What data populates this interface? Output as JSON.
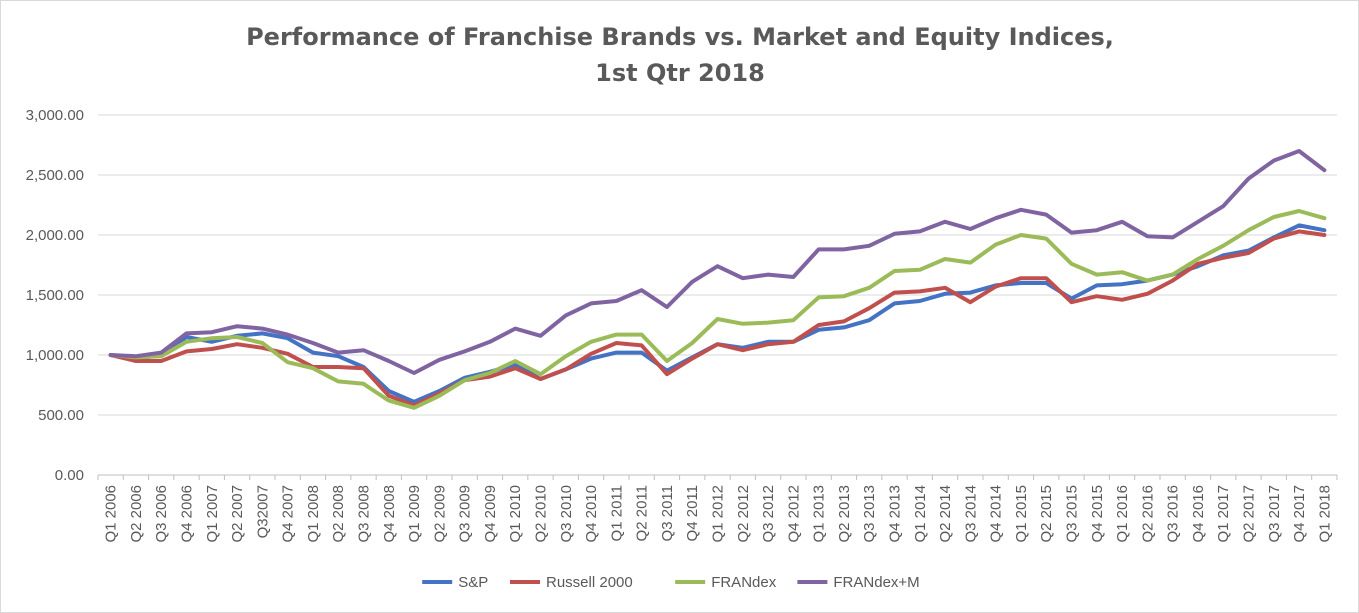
{
  "chart_data": {
    "type": "line",
    "title_lines": [
      "Performance of Franchise Brands vs. Market and Equity Indices,",
      "1st Qtr 2018"
    ],
    "xlabel": "",
    "ylabel": "",
    "ylim": [
      0,
      3000
    ],
    "y_ticks": [
      "0.00",
      "500.00",
      "1,000.00",
      "1,500.00",
      "2,000.00",
      "2,500.00",
      "3,000.00"
    ],
    "grid": "horizontal",
    "legend_position": "bottom",
    "categories": [
      "Q1 2006",
      "Q2 2006",
      "Q3 2006",
      "Q4 2006",
      "Q1 2007",
      "Q2 2007",
      "Q32007",
      "Q4 2007",
      "Q1 2008",
      "Q2 2008",
      "Q3 2008",
      "Q4 2008",
      "Q1 2009",
      "Q2 2009",
      "Q3 2009",
      "Q4 2009",
      "Q1 2010",
      "Q2 2010",
      "Q3 2010",
      "Q4 2010",
      "Q1 2011",
      "Q2 2011",
      "Q3 2011",
      "Q4 2011",
      "Q1 2012",
      "Q2 2012",
      "Q3 2012",
      "Q4 2012",
      "Q1 2013",
      "Q2 2013",
      "Q3 2013",
      "Q4 2013",
      "Q1 2014",
      "Q2 2014",
      "Q3 2014",
      "Q4 2014",
      "Q1 2015",
      "Q2 2015",
      "Q3 2015",
      "Q4 2015",
      "Q1 2016",
      "Q2 2016",
      "Q3 2016",
      "Q4 2016",
      "Q1 2017",
      "Q2 2017",
      "Q3 2017",
      "Q4 2017",
      "Q1 2018"
    ],
    "series": [
      {
        "name": "S&P",
        "color": "#4472C4",
        "values": [
          1000,
          970,
          1000,
          1150,
          1110,
          1160,
          1180,
          1140,
          1020,
          990,
          900,
          700,
          610,
          700,
          810,
          860,
          920,
          800,
          880,
          970,
          1020,
          1020,
          870,
          980,
          1090,
          1060,
          1110,
          1110,
          1210,
          1230,
          1290,
          1430,
          1450,
          1510,
          1520,
          1580,
          1600,
          1600,
          1470,
          1580,
          1590,
          1620,
          1670,
          1740,
          1830,
          1870,
          1980,
          2080,
          2040
        ]
      },
      {
        "name": "Russell 2000",
        "color": "#C0504D",
        "values": [
          1000,
          950,
          950,
          1030,
          1050,
          1090,
          1060,
          1010,
          900,
          900,
          890,
          660,
          580,
          680,
          790,
          820,
          890,
          800,
          880,
          1010,
          1100,
          1080,
          840,
          970,
          1090,
          1040,
          1090,
          1110,
          1250,
          1280,
          1390,
          1520,
          1530,
          1560,
          1440,
          1570,
          1640,
          1640,
          1440,
          1490,
          1460,
          1510,
          1620,
          1760,
          1810,
          1850,
          1970,
          2030,
          2000
        ]
      },
      {
        "name": "FRANdex",
        "color": "#9BBB59",
        "values": [
          1000,
          980,
          990,
          1110,
          1140,
          1150,
          1100,
          940,
          890,
          780,
          760,
          620,
          560,
          660,
          790,
          850,
          950,
          840,
          990,
          1110,
          1170,
          1170,
          950,
          1100,
          1300,
          1260,
          1270,
          1290,
          1480,
          1490,
          1560,
          1700,
          1710,
          1800,
          1770,
          1920,
          2000,
          1970,
          1760,
          1670,
          1690,
          1620,
          1670,
          1800,
          1910,
          2040,
          2150,
          2200,
          2140
        ]
      },
      {
        "name": "FRANdex+M",
        "color": "#8064A2",
        "values": [
          1000,
          990,
          1020,
          1180,
          1190,
          1240,
          1220,
          1170,
          1100,
          1020,
          1040,
          950,
          850,
          960,
          1030,
          1110,
          1220,
          1160,
          1330,
          1430,
          1450,
          1540,
          1400,
          1610,
          1740,
          1640,
          1670,
          1650,
          1880,
          1880,
          1910,
          2010,
          2030,
          2110,
          2050,
          2140,
          2210,
          2170,
          2020,
          2040,
          2110,
          1990,
          1980,
          2110,
          2240,
          2470,
          2620,
          2700,
          2540
        ]
      }
    ]
  }
}
